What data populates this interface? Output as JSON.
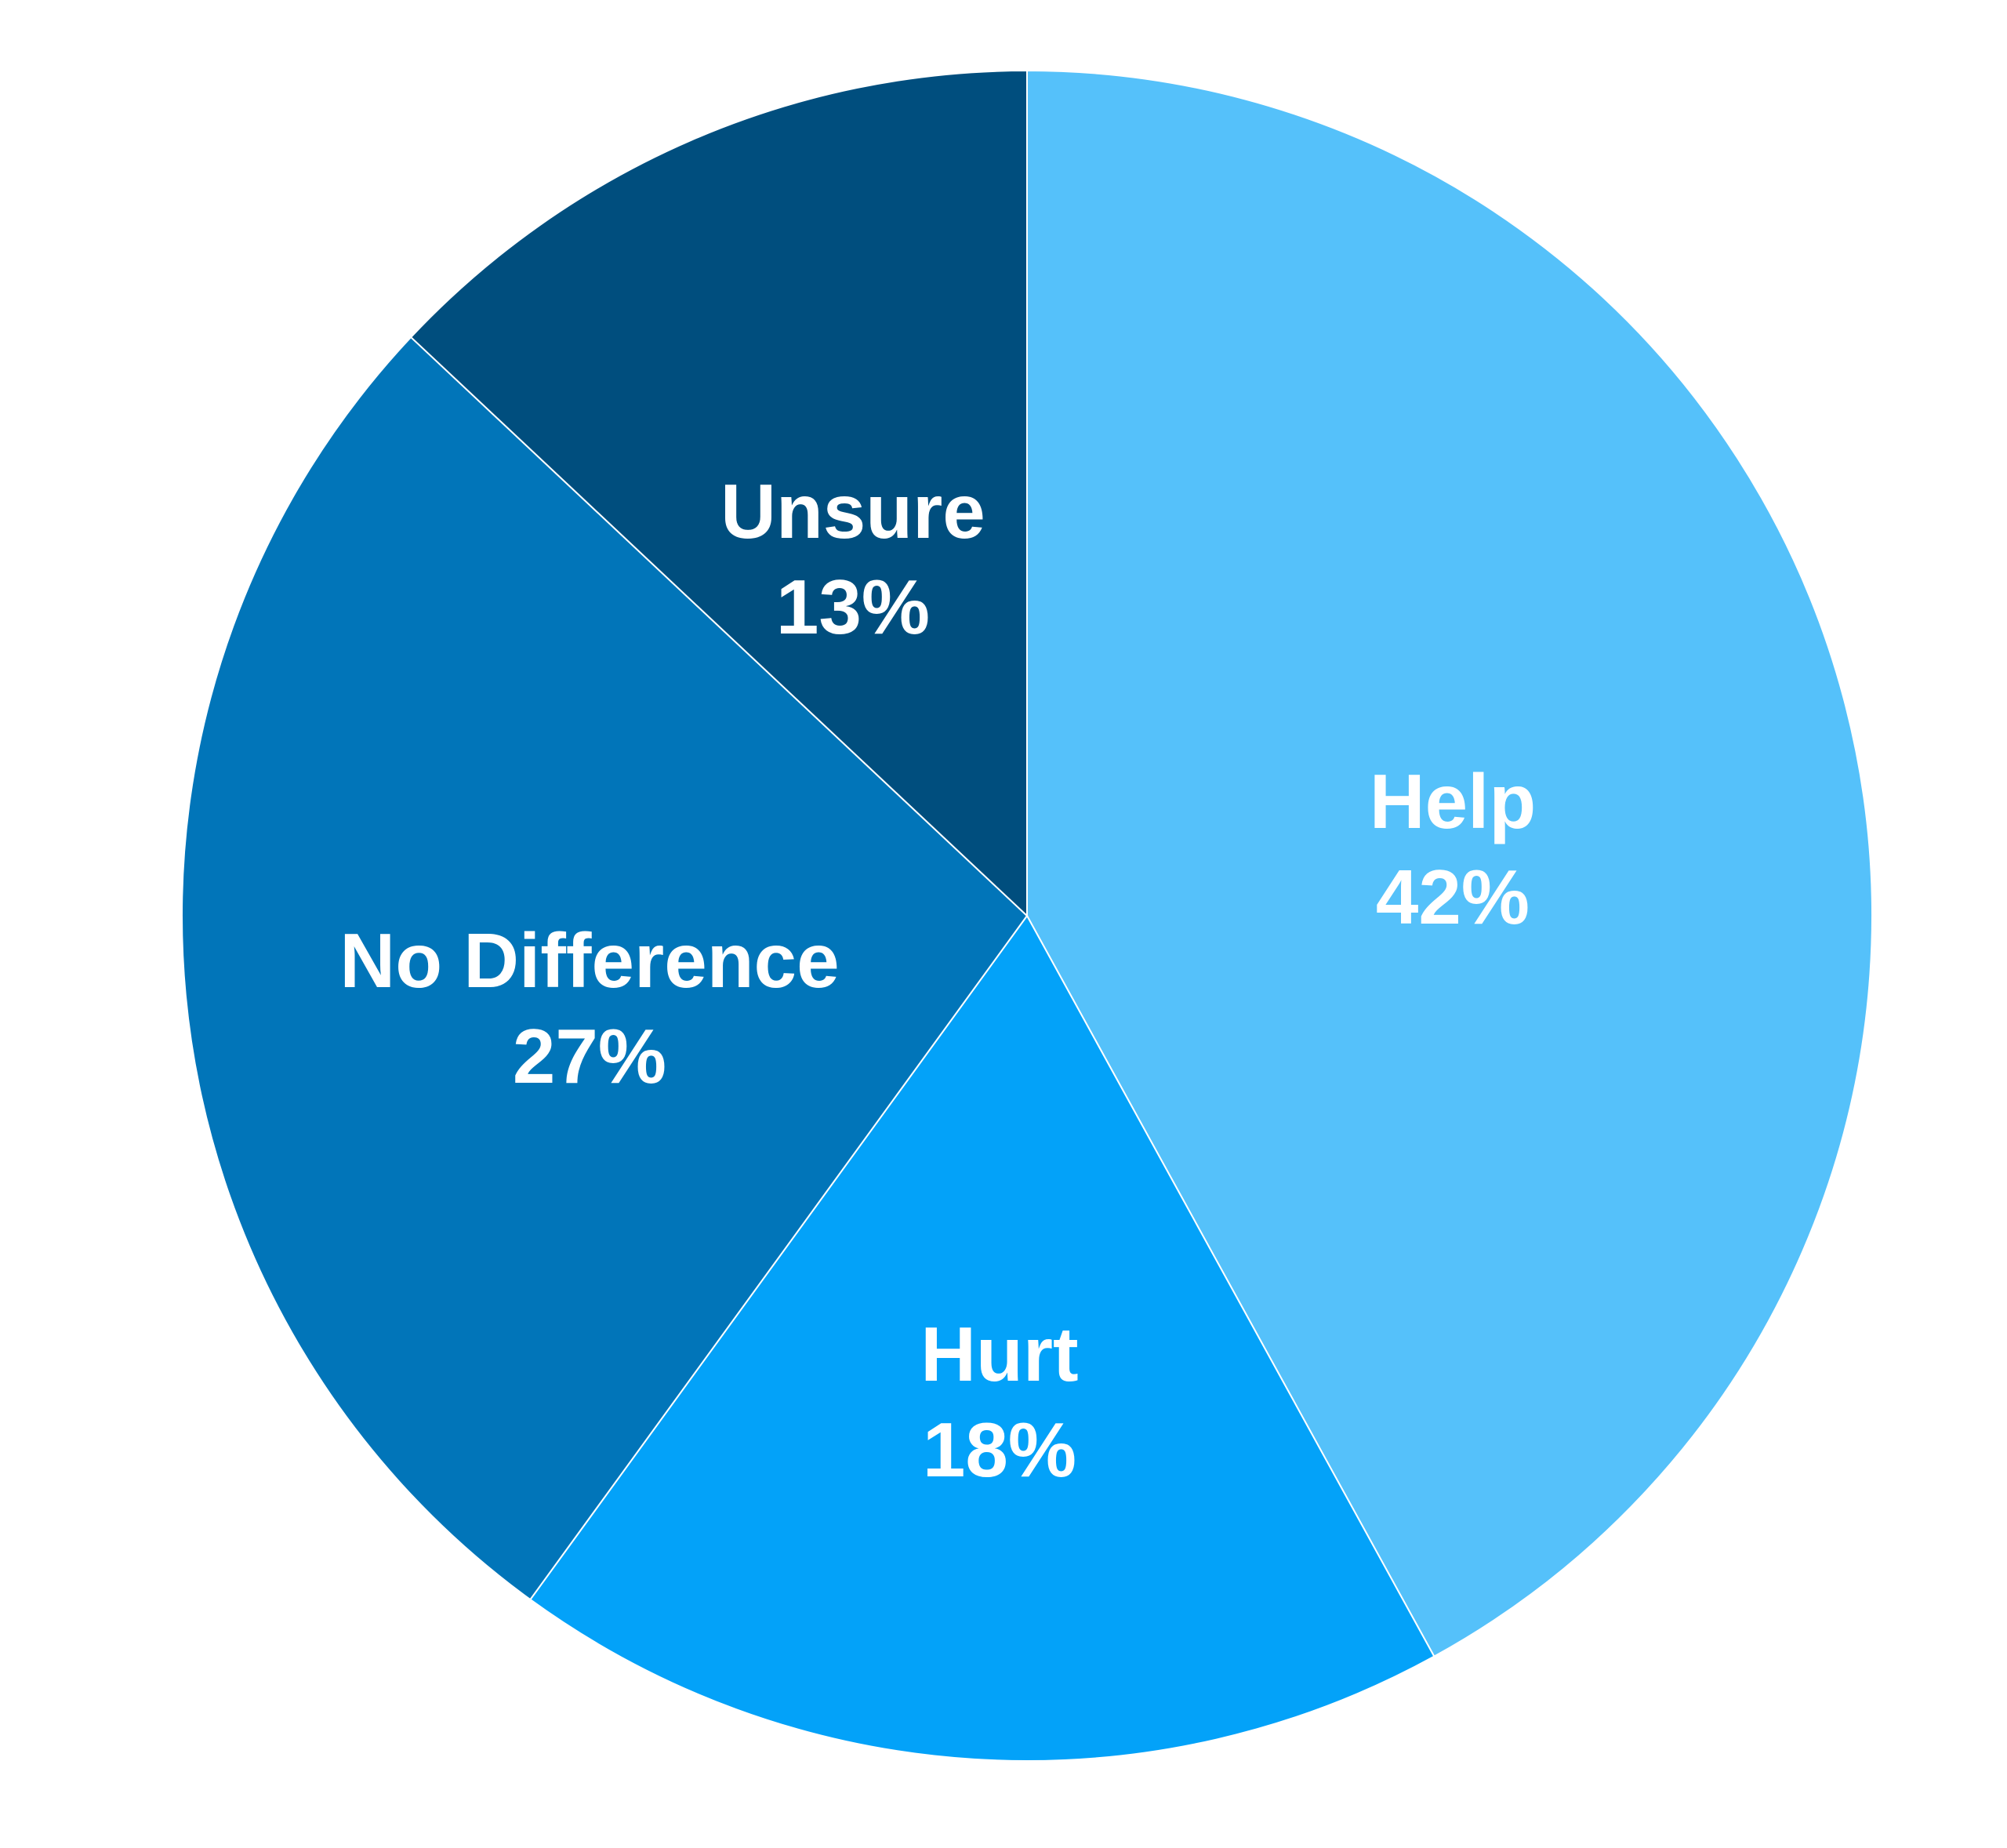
{
  "chart_data": {
    "type": "pie",
    "title": "",
    "slices": [
      {
        "label": "Help",
        "value": 42,
        "value_label": "42%",
        "color": "#55C1FA"
      },
      {
        "label": "Hurt",
        "value": 18,
        "value_label": "18%",
        "color": "#03A2F9"
      },
      {
        "label": "No Difference",
        "value": 27,
        "value_label": "27%",
        "color": "#0175B9"
      },
      {
        "label": "Unsure",
        "value": 13,
        "value_label": "13%",
        "color": "#004E7E"
      }
    ],
    "start_angle_deg": 0,
    "direction": "clockwise",
    "data_labels": "inside",
    "legend": "none"
  }
}
